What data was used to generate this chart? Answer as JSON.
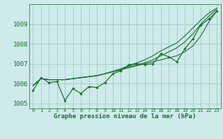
{
  "bg_color": "#ceeaea",
  "grid_color": "#aacccc",
  "line_color": "#1a6e2e",
  "text_color": "#1a6e2e",
  "xlabel": "Graphe pression niveau de la mer (hPa)",
  "ylim": [
    1004.75,
    1010.0
  ],
  "xlim": [
    -0.5,
    23.5
  ],
  "yticks": [
    1005,
    1006,
    1007,
    1008,
    1009
  ],
  "xticks": [
    0,
    1,
    2,
    3,
    4,
    5,
    6,
    7,
    8,
    9,
    10,
    11,
    12,
    13,
    14,
    15,
    16,
    17,
    18,
    19,
    20,
    21,
    22,
    23
  ],
  "series_zigzag": [
    1005.65,
    1006.3,
    1006.05,
    1006.1,
    1005.15,
    1005.75,
    1005.5,
    1005.85,
    1005.8,
    1006.05,
    1006.5,
    1006.65,
    1006.95,
    1007.0,
    1006.95,
    1007.0,
    1007.5,
    1007.35,
    1007.1,
    1007.75,
    1008.25,
    1008.95,
    1009.25,
    1009.65
  ],
  "series_smooth": [
    [
      1005.9,
      1006.25,
      1006.2,
      1006.2,
      1006.2,
      1006.25,
      1006.3,
      1006.35,
      1006.4,
      1006.5,
      1006.6,
      1006.7,
      1006.8,
      1006.9,
      1007.0,
      1007.1,
      1007.2,
      1007.3,
      1007.4,
      1007.6,
      1007.9,
      1008.4,
      1009.1,
      1009.65
    ],
    [
      1005.9,
      1006.25,
      1006.2,
      1006.2,
      1006.2,
      1006.25,
      1006.3,
      1006.35,
      1006.4,
      1006.5,
      1006.6,
      1006.7,
      1006.85,
      1006.95,
      1007.05,
      1007.2,
      1007.4,
      1007.6,
      1007.8,
      1008.1,
      1008.5,
      1009.0,
      1009.4,
      1009.75
    ],
    [
      1005.9,
      1006.25,
      1006.2,
      1006.2,
      1006.2,
      1006.25,
      1006.3,
      1006.35,
      1006.4,
      1006.5,
      1006.62,
      1006.75,
      1006.9,
      1007.05,
      1007.2,
      1007.4,
      1007.65,
      1007.85,
      1008.05,
      1008.4,
      1008.8,
      1009.2,
      1009.55,
      1009.8
    ]
  ]
}
